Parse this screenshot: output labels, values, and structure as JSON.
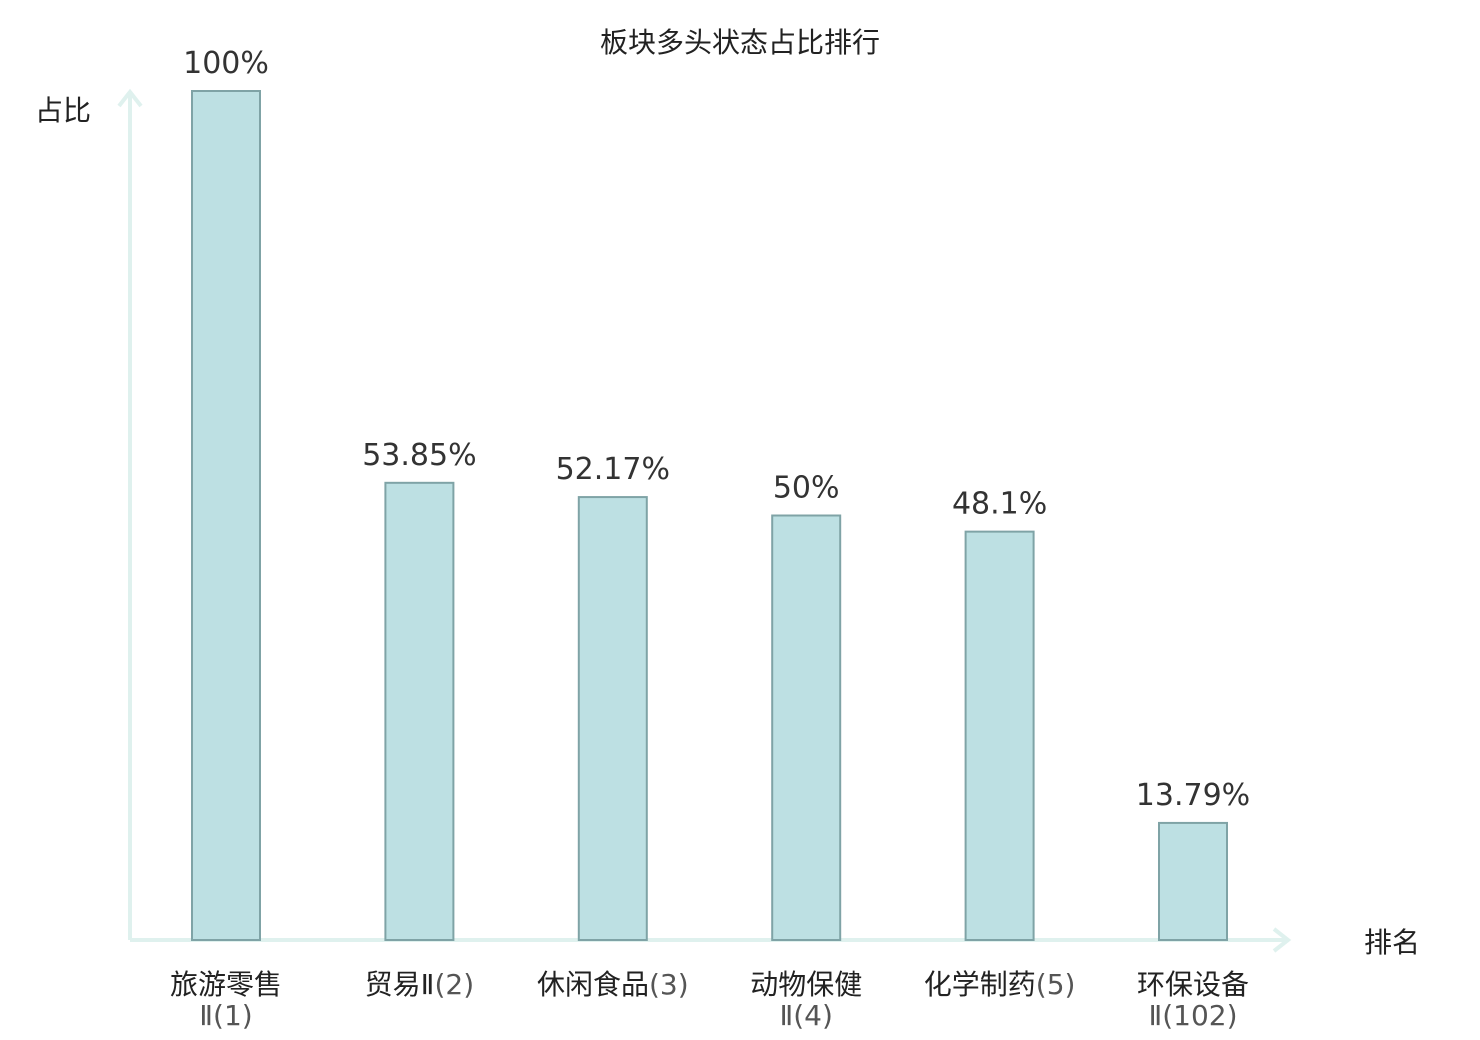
{
  "chart_data": {
    "type": "bar",
    "title": "板块多头状态占比排行",
    "ylabel": "占比",
    "xlabel": "排名",
    "ylim": [
      0,
      100
    ],
    "grid": false,
    "categories": [
      {
        "line1": "旅游零售",
        "line2": "Ⅱ(1)",
        "highlight": false
      },
      {
        "line1": "贸易Ⅱ",
        "line2": "(2)",
        "highlight": false
      },
      {
        "line1": "休闲食品",
        "line2": "(3)",
        "highlight": false
      },
      {
        "line1": "动物保健",
        "line2": "Ⅱ(4)",
        "highlight": false
      },
      {
        "line1": "化学制药",
        "line2": "(5)",
        "highlight": false
      },
      {
        "line1": "环保设备",
        "line2": "Ⅱ(102)",
        "highlight": true
      }
    ],
    "values": [
      100,
      53.85,
      52.17,
      50,
      48.1,
      13.79
    ],
    "value_labels": [
      "100%",
      "53.85%",
      "52.17%",
      "50%",
      "48.1%",
      "13.79%"
    ],
    "colors": {
      "bar_fill": "#bde0e3",
      "bar_stroke": "#7fa3a6",
      "axis": "#dff1ee",
      "highlight": "#e8161c"
    }
  }
}
